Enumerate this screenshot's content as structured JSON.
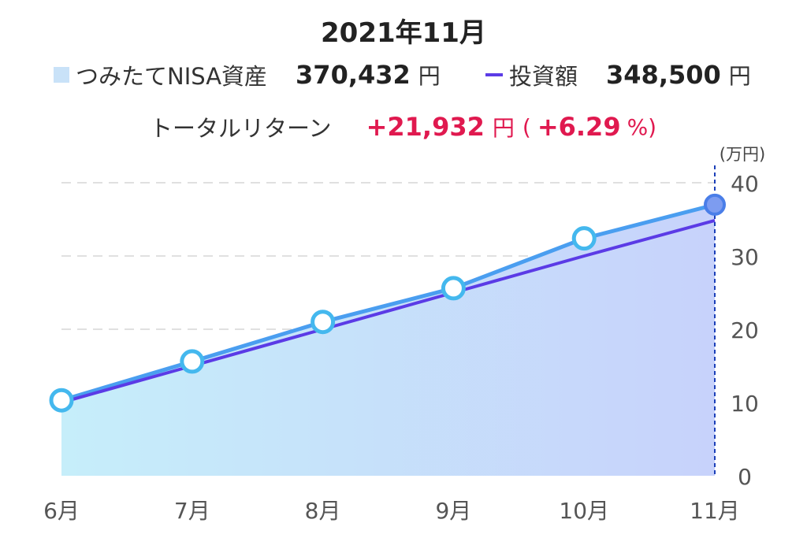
{
  "header": {
    "title": "2021年11月",
    "asset_label": "つみたてNISA資産",
    "asset_value": "370,432",
    "asset_unit": "円",
    "invest_label": "投資額",
    "invest_value": "348,500",
    "invest_unit": "円",
    "return_label": "トータルリターン",
    "return_value": "+21,932",
    "return_unit": "円",
    "return_paren_open": "(",
    "return_pct": "+6.29",
    "return_pct_unit": "%)"
  },
  "colors": {
    "asset_line": "#4a9ef0",
    "asset_fill_start": "#c6eefa",
    "asset_fill_end": "#c7d2fb",
    "invest_line": "#5b3be6",
    "return": "#e0194f",
    "cursor": "#1b3fb8"
  },
  "chart_data": {
    "type": "line",
    "categories": [
      "6月",
      "7月",
      "8月",
      "9月",
      "10月",
      "11月"
    ],
    "series": [
      {
        "name": "つみたてNISA資産",
        "kind": "area",
        "values": [
          10.3,
          15.6,
          21.0,
          25.6,
          32.4,
          37.0
        ]
      },
      {
        "name": "投資額",
        "kind": "line",
        "values": [
          10.0,
          15.0,
          20.0,
          25.0,
          30.0,
          34.85
        ]
      }
    ],
    "y_unit": "(万円)",
    "ylim": [
      0,
      40
    ],
    "yticks": [
      0,
      10,
      20,
      30,
      40
    ],
    "grid": true,
    "cursor_category": "11月"
  }
}
